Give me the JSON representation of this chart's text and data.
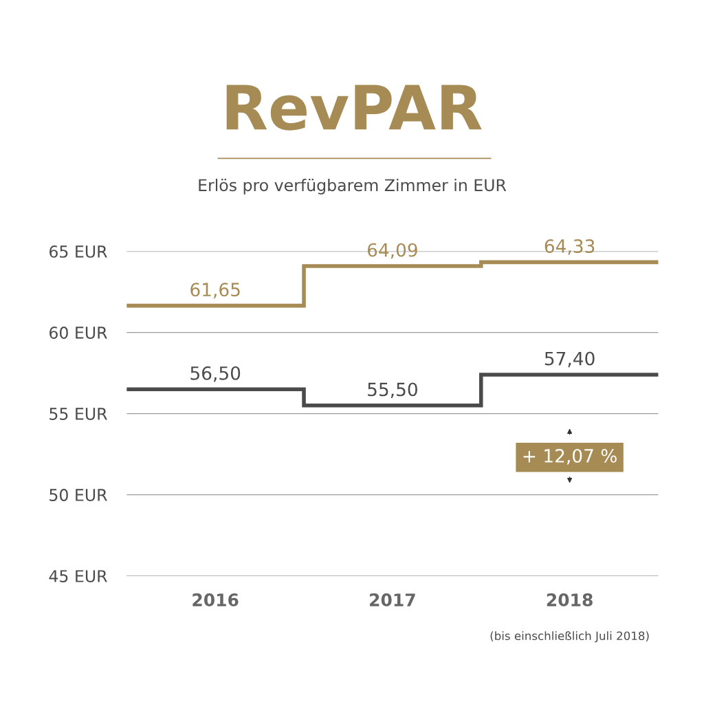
{
  "chart_data": {
    "type": "step",
    "title": "RevPAR",
    "subtitle": "Erlös pro verfügbarem Zimmer in EUR",
    "categories": [
      "2016",
      "2017",
      "2018"
    ],
    "series": [
      {
        "color": "#a68b55",
        "values": [
          61.65,
          64.09,
          64.33
        ],
        "value_labels": [
          "61,65",
          "64,09",
          "64,33"
        ]
      },
      {
        "color": "#4a4a4a",
        "values": [
          56.5,
          55.5,
          57.4
        ],
        "value_labels": [
          "56,50",
          "55,50",
          "57,40"
        ]
      }
    ],
    "ylim": [
      45,
      65
    ],
    "yticks": [
      {
        "value": 45,
        "label": "45 EUR"
      },
      {
        "value": 50,
        "label": "50 EUR"
      },
      {
        "value": 55,
        "label": "55 EUR"
      },
      {
        "value": 60,
        "label": "60 EUR"
      },
      {
        "value": 65,
        "label": "65 EUR"
      }
    ],
    "grid": "y",
    "legend": false,
    "annotations": [
      "+ 12,07 %",
      "(bis einschließlich Juli 2018)"
    ]
  }
}
